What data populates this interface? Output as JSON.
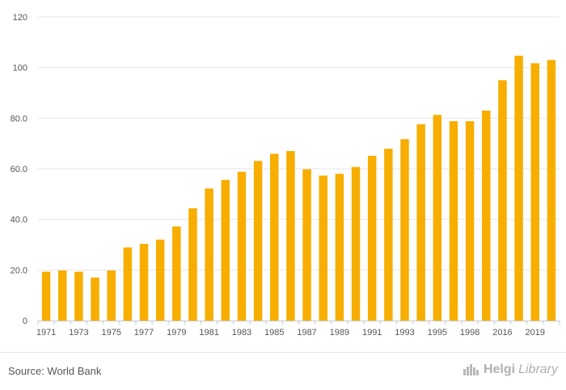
{
  "chart_data": {
    "type": "bar",
    "categories": [
      "1971",
      "1972",
      "1973",
      "1974",
      "1975",
      "1976",
      "1977",
      "1978",
      "1979",
      "1980",
      "1981",
      "1982",
      "1983",
      "1984",
      "1985",
      "1986",
      "1987",
      "1988",
      "1989",
      "1990",
      "1991",
      "1992",
      "1993",
      "1994",
      "1995",
      "1996",
      "1998",
      "1999",
      "2016",
      "2017",
      "2019",
      "2020"
    ],
    "visible_x_labels": [
      "1971",
      "1973",
      "1975",
      "1977",
      "1979",
      "1981",
      "1983",
      "1985",
      "1987",
      "1989",
      "1991",
      "1993",
      "1995",
      "1998",
      "2016",
      "2019"
    ],
    "values": [
      19.3,
      19.8,
      19.3,
      17.0,
      19.8,
      28.9,
      30.3,
      32.0,
      37.2,
      44.4,
      52.2,
      55.6,
      58.8,
      63.1,
      65.9,
      67.0,
      59.8,
      57.3,
      58.0,
      60.7,
      65.1,
      67.9,
      71.7,
      77.6,
      81.3,
      78.8,
      78.8,
      83.0,
      95.0,
      104.7,
      101.7,
      103.0
    ],
    "y_ticks": [
      "0",
      "20.0",
      "40.0",
      "60.0",
      "80.0",
      "100",
      "120"
    ],
    "ylim": [
      0,
      120
    ],
    "bar_color": "#f7ae00",
    "grid": true,
    "title": "",
    "xlabel": "",
    "ylabel": ""
  },
  "footer": {
    "source": "Source: World Bank",
    "brand_bold": "Helgi",
    "brand_light": "Library"
  }
}
